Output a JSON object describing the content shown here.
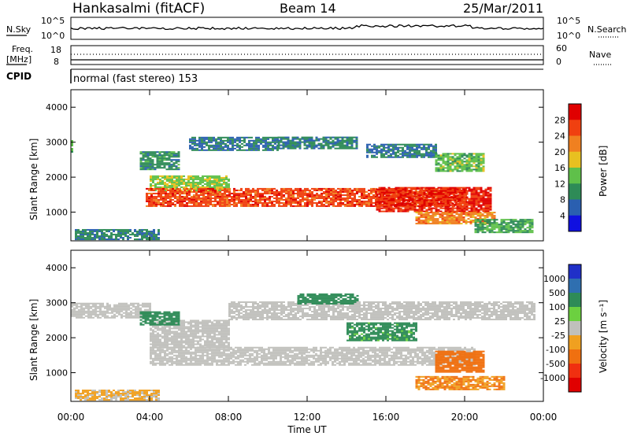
{
  "header": {
    "station": "Hankasalmi (fitACF)",
    "beam": "Beam 14",
    "date": "25/Mar/2011"
  },
  "status_panels": {
    "nsky_label": "N.Sky",
    "nsky_ticks": [
      "10^5",
      "10^0"
    ],
    "nsearch_label": "N.Search",
    "nsearch_ticks": [
      "10^5",
      "10^0"
    ],
    "freq_label_line1": "Freq.",
    "freq_label_line2": "[MHz]",
    "freq_ticks": [
      "18",
      "8"
    ],
    "nave_label": "Nave",
    "nave_ticks": [
      "60",
      "0"
    ],
    "cpid_label": "CPID",
    "cpid_text": "normal (fast stereo) 153"
  },
  "colors": {
    "power_scale": [
      "#1010e0",
      "#2a5fb0",
      "#2e8b57",
      "#5fc04a",
      "#e8c020",
      "#f08020",
      "#f04010",
      "#e00000"
    ],
    "velocity_scale": [
      "#2030c8",
      "#2f6fb0",
      "#2e8b57",
      "#6cd040",
      "#c0c0bc",
      "#f0a020",
      "#f07010",
      "#f03010",
      "#e00000"
    ],
    "ground_scatter": "#c0c0bc"
  },
  "chart_data": [
    {
      "type": "heatmap",
      "name": "power",
      "ylabel": "Slant Range [km]",
      "ylim": [
        180,
        4500
      ],
      "y_ticks": [
        "4000",
        "3000",
        "2000",
        "1000"
      ],
      "y_tick_values": [
        4000,
        3000,
        2000,
        1000
      ],
      "colorbar_label": "Power [dB]",
      "colorbar_ticks": [
        "28",
        "24",
        "20",
        "16",
        "12",
        "8",
        "4"
      ],
      "colorbar_range": [
        0,
        32
      ],
      "bands": [
        {
          "t0": 0.0,
          "t1": 0.12,
          "r0": 2700,
          "r1": 3050,
          "value": 12
        },
        {
          "t0": 3.5,
          "t1": 5.5,
          "r0": 2200,
          "r1": 2700,
          "value": 10
        },
        {
          "t0": 6.0,
          "t1": 10.5,
          "r0": 2750,
          "r1": 3150,
          "value": 8
        },
        {
          "t0": 10.5,
          "t1": 14.5,
          "r0": 2800,
          "r1": 3150,
          "value": 9
        },
        {
          "t0": 15.0,
          "t1": 18.5,
          "r0": 2550,
          "r1": 2950,
          "value": 8
        },
        {
          "t0": 18.5,
          "t1": 21.0,
          "r0": 2150,
          "r1": 2650,
          "value": 14
        },
        {
          "t0": 4.0,
          "t1": 8.0,
          "r0": 1600,
          "r1": 2050,
          "value": 15
        },
        {
          "t0": 3.8,
          "t1": 20.0,
          "r0": 1150,
          "r1": 1650,
          "value": 26
        },
        {
          "t0": 15.5,
          "t1": 21.3,
          "r0": 1000,
          "r1": 1700,
          "value": 28
        },
        {
          "t0": 17.5,
          "t1": 21.5,
          "r0": 650,
          "r1": 1000,
          "value": 22
        },
        {
          "t0": 0.2,
          "t1": 4.5,
          "r0": 200,
          "r1": 500,
          "value": 9
        },
        {
          "t0": 20.5,
          "t1": 23.5,
          "r0": 400,
          "r1": 800,
          "value": 12
        }
      ]
    },
    {
      "type": "heatmap",
      "name": "velocity",
      "ylabel": "Slant Range [km]",
      "ylim": [
        180,
        4500
      ],
      "y_ticks": [
        "4000",
        "3000",
        "2000",
        "1000"
      ],
      "y_tick_values": [
        4000,
        3000,
        2000,
        1000
      ],
      "colorbar_label": "Velocity [m s⁻¹]",
      "colorbar_ticks": [
        "1000",
        "500",
        "100",
        "25",
        "-25",
        "-100",
        "-500",
        "-1000"
      ],
      "bands": [
        {
          "t0": 0.0,
          "t1": 4.0,
          "r0": 2550,
          "r1": 3000,
          "value": 0
        },
        {
          "t0": 4.0,
          "t1": 8.0,
          "r0": 1700,
          "r1": 2500,
          "value": 0
        },
        {
          "t0": 4.0,
          "t1": 20.5,
          "r0": 1200,
          "r1": 1700,
          "value": 0
        },
        {
          "t0": 8.0,
          "t1": 23.5,
          "r0": 2500,
          "r1": 3000,
          "value": 0
        },
        {
          "t0": 3.5,
          "t1": 5.5,
          "r0": 2350,
          "r1": 2750,
          "value": 300
        },
        {
          "t0": 11.5,
          "t1": 14.5,
          "r0": 2950,
          "r1": 3250,
          "value": 200
        },
        {
          "t0": 14.0,
          "t1": 17.5,
          "r0": 1900,
          "r1": 2400,
          "value": 150
        },
        {
          "t0": 18.5,
          "t1": 21.0,
          "r0": 1000,
          "r1": 1600,
          "value": -200
        },
        {
          "t0": 17.5,
          "t1": 22.0,
          "r0": 500,
          "r1": 900,
          "value": -100
        },
        {
          "t0": 0.2,
          "t1": 4.5,
          "r0": 200,
          "r1": 500,
          "value": -40
        }
      ]
    }
  ],
  "time_axis": {
    "label": "Time UT",
    "range_hours": [
      0,
      24
    ],
    "tick_hours": [
      0,
      4,
      8,
      12,
      16,
      20,
      24
    ],
    "tick_labels": [
      "00:00",
      "04:00",
      "08:00",
      "12:00",
      "16:00",
      "20:00",
      "00:00"
    ]
  }
}
